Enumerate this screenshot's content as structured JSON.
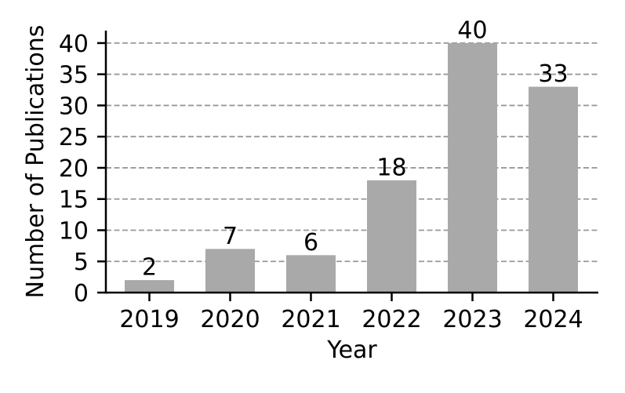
{
  "figure": {
    "background": "#ffffff"
  },
  "chart_data": {
    "type": "bar",
    "title": "",
    "categories": [
      "2019",
      "2020",
      "2021",
      "2022",
      "2023",
      "2024"
    ],
    "values": [
      2,
      7,
      6,
      18,
      40,
      33
    ],
    "xlabel": "Year",
    "ylabel": "Number of Publications",
    "ylim": [
      0,
      42
    ],
    "yticks": [
      0,
      5,
      10,
      15,
      20,
      25,
      30,
      35,
      40
    ],
    "value_labels": [
      "2",
      "7",
      "6",
      "18",
      "40",
      "33"
    ],
    "bar_color": "#a9a9a9",
    "grid": true,
    "grid_style": "dashed",
    "grid_color": "#999999",
    "axis_color": "#000000",
    "text_color": "#000000",
    "legend_position": "none"
  }
}
